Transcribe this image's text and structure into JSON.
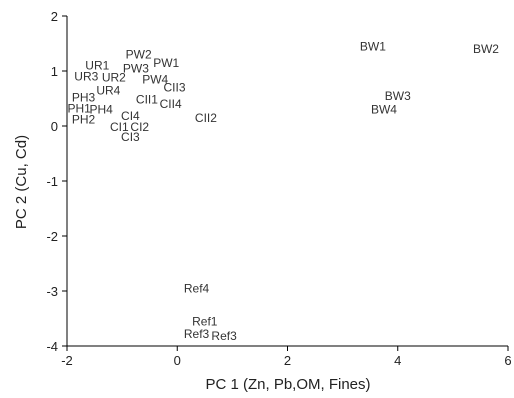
{
  "chart_data": {
    "type": "scatter",
    "title": "",
    "xlabel": "PC 1 (Zn, Pb,OM, Fines)",
    "ylabel": "PC 2 (Cu, Cd)",
    "xlim": [
      -2,
      6
    ],
    "ylim": [
      -4,
      2
    ],
    "xticks": [
      -2,
      0,
      2,
      4,
      6
    ],
    "yticks": [
      -4,
      -3,
      -2,
      -1,
      0,
      1,
      2
    ],
    "grid": false,
    "points": [
      {
        "label": "BW1",
        "x": 3.55,
        "y": 1.45
      },
      {
        "label": "BW2",
        "x": 5.6,
        "y": 1.4
      },
      {
        "label": "BW3",
        "x": 4.0,
        "y": 0.55
      },
      {
        "label": "BW4",
        "x": 3.75,
        "y": 0.3
      },
      {
        "label": "PW2",
        "x": -0.7,
        "y": 1.3
      },
      {
        "label": "PW1",
        "x": -0.2,
        "y": 1.15
      },
      {
        "label": "PW3",
        "x": -0.75,
        "y": 1.05
      },
      {
        "label": "PW4",
        "x": -0.4,
        "y": 0.85
      },
      {
        "label": "UR1",
        "x": -1.45,
        "y": 1.1
      },
      {
        "label": "UR3",
        "x": -1.65,
        "y": 0.9
      },
      {
        "label": "UR2",
        "x": -1.15,
        "y": 0.88
      },
      {
        "label": "UR4",
        "x": -1.25,
        "y": 0.65
      },
      {
        "label": "PH3",
        "x": -1.7,
        "y": 0.52
      },
      {
        "label": "PH1",
        "x": -1.78,
        "y": 0.32
      },
      {
        "label": "PH4",
        "x": -1.38,
        "y": 0.3
      },
      {
        "label": "PH2",
        "x": -1.7,
        "y": 0.12
      },
      {
        "label": "CII3",
        "x": -0.05,
        "y": 0.7
      },
      {
        "label": "CII1",
        "x": -0.55,
        "y": 0.48
      },
      {
        "label": "CII4",
        "x": -0.12,
        "y": 0.4
      },
      {
        "label": "CII2",
        "x": 0.52,
        "y": 0.15
      },
      {
        "label": "CI4",
        "x": -0.85,
        "y": 0.18
      },
      {
        "label": "CI1",
        "x": -1.05,
        "y": -0.02
      },
      {
        "label": "CI2",
        "x": -0.68,
        "y": -0.02
      },
      {
        "label": "CI3",
        "x": -0.85,
        "y": -0.2
      },
      {
        "label": "Ref4",
        "x": 0.35,
        "y": -2.95
      },
      {
        "label": "Ref1",
        "x": 0.5,
        "y": -3.55
      },
      {
        "label": "Ref3",
        "x": 0.35,
        "y": -3.78
      },
      {
        "label": "Ref3",
        "x": 0.85,
        "y": -3.82
      }
    ]
  }
}
